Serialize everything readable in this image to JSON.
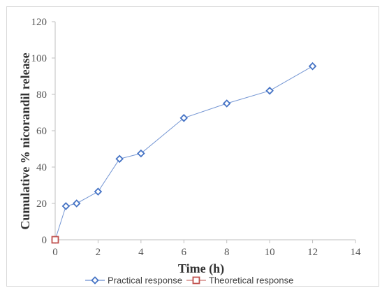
{
  "chart_data": {
    "type": "scatter",
    "title": "",
    "xlabel": "Time (h)",
    "ylabel": "Cumulative % nicorandil release",
    "xlim": [
      0,
      14
    ],
    "ylim": [
      0,
      120
    ],
    "x_ticks": [
      0,
      2,
      4,
      6,
      8,
      10,
      12,
      14
    ],
    "y_ticks": [
      0,
      20,
      40,
      60,
      80,
      100,
      120
    ],
    "grid": false,
    "legend_position": "bottom",
    "series": [
      {
        "name": "Practical response",
        "color": "#4472c4",
        "marker": "diamond",
        "line": true,
        "x": [
          0,
          0.5,
          1,
          2,
          3,
          4,
          6,
          8,
          10,
          12
        ],
        "y": [
          0,
          18.5,
          20,
          26.5,
          44.5,
          47.5,
          67,
          75,
          82,
          95.5
        ]
      },
      {
        "name": "Theoretical response",
        "color": "#c0504d",
        "marker": "square",
        "line": true,
        "x": [
          0
        ],
        "y": [
          0
        ]
      }
    ]
  }
}
